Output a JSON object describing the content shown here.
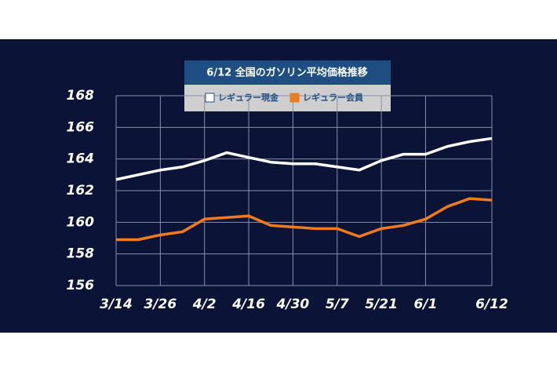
{
  "chart_data": {
    "type": "line",
    "title": "6/12 全国のガソリン平均価格推移",
    "categories": [
      "3/14",
      null,
      "3/26",
      null,
      "4/2",
      null,
      "4/16",
      null,
      "4/30",
      null,
      "5/7",
      null,
      "5/21",
      null,
      "6/1",
      null,
      null,
      "6/12"
    ],
    "series": [
      {
        "name": "レギュラー現金",
        "color": "#ffffff",
        "values": [
          162.7,
          163.0,
          163.3,
          163.5,
          163.9,
          164.4,
          164.1,
          163.8,
          163.7,
          163.7,
          163.5,
          163.3,
          163.9,
          164.3,
          164.3,
          164.8,
          165.1,
          165.3
        ]
      },
      {
        "name": "レギュラー会員",
        "color": "#f07a1e",
        "values": [
          158.9,
          158.9,
          159.2,
          159.4,
          160.2,
          160.3,
          160.4,
          159.8,
          159.7,
          159.6,
          159.6,
          159.1,
          159.6,
          159.8,
          160.2,
          161.0,
          161.5,
          161.4
        ]
      }
    ],
    "ylim": [
      156,
      168
    ],
    "yticks": [
      156,
      158,
      160,
      162,
      164,
      166,
      168
    ],
    "grid": true
  }
}
